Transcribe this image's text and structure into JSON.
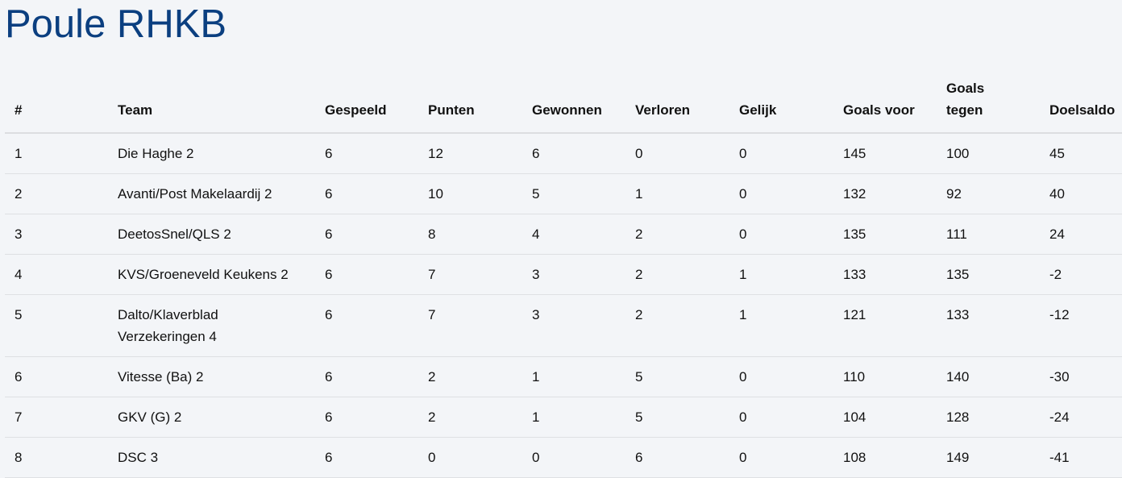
{
  "title": "Poule RHKB",
  "columns": [
    "#",
    "Team",
    "Gespeeld",
    "Punten",
    "Gewonnen",
    "Verloren",
    "Gelijk",
    "Goals voor",
    "Goals tegen",
    "Doelsaldo"
  ],
  "rows": [
    [
      "1",
      "Die Haghe 2",
      "6",
      "12",
      "6",
      "0",
      "0",
      "145",
      "100",
      "45"
    ],
    [
      "2",
      "Avanti/Post Makelaardij 2",
      "6",
      "10",
      "5",
      "1",
      "0",
      "132",
      "92",
      "40"
    ],
    [
      "3",
      "DeetosSnel/QLS 2",
      "6",
      "8",
      "4",
      "2",
      "0",
      "135",
      "111",
      "24"
    ],
    [
      "4",
      "KVS/Groeneveld Keukens 2",
      "6",
      "7",
      "3",
      "2",
      "1",
      "133",
      "135",
      "-2"
    ],
    [
      "5",
      "Dalto/Klaverblad Verzekeringen 4",
      "6",
      "7",
      "3",
      "2",
      "1",
      "121",
      "133",
      "-12"
    ],
    [
      "6",
      "Vitesse (Ba) 2",
      "6",
      "2",
      "1",
      "5",
      "0",
      "110",
      "140",
      "-30"
    ],
    [
      "7",
      "GKV (G) 2",
      "6",
      "2",
      "1",
      "5",
      "0",
      "104",
      "128",
      "-24"
    ],
    [
      "8",
      "DSC 3",
      "6",
      "0",
      "0",
      "6",
      "0",
      "108",
      "149",
      "-41"
    ]
  ]
}
